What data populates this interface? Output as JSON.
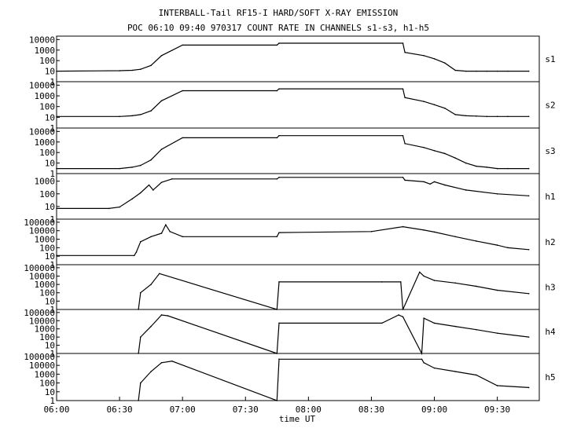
{
  "title_line1": "INTERBALL-Tail RF15-I HARD/SOFT X-RAY EMISSION",
  "title_line2": "POC 06:10 09:40 970317  COUNT RATE IN CHANNELS s1-s3, h1-h5",
  "xlabel": "time UT",
  "chart_data": [
    {
      "type": "line",
      "channel": "s1",
      "ytick_labels": [
        "10000",
        "1000",
        "100",
        "10",
        "1"
      ],
      "ylim": [
        1,
        15000
      ],
      "x": [
        "06:00",
        "06:30",
        "06:36",
        "06:40",
        "06:45",
        "06:50",
        "07:00",
        "07:45",
        "07:46",
        "08:45",
        "08:46",
        "08:55",
        "09:00",
        "09:05",
        "09:10",
        "09:15",
        "09:20",
        "09:25",
        "09:30",
        "09:35",
        "09:45"
      ],
      "values": [
        10,
        11,
        12,
        15,
        35,
        300,
        3000,
        3000,
        4500,
        4500,
        600,
        300,
        150,
        60,
        12,
        10,
        10,
        10,
        10,
        10,
        10
      ]
    },
    {
      "type": "line",
      "channel": "s2",
      "ytick_labels": [
        "10000",
        "1000",
        "100",
        "10",
        "1"
      ],
      "ylim": [
        1,
        15000
      ],
      "x": [
        "06:00",
        "06:30",
        "06:36",
        "06:40",
        "06:45",
        "06:50",
        "07:00",
        "07:45",
        "07:46",
        "08:45",
        "08:46",
        "08:55",
        "09:00",
        "09:05",
        "09:10",
        "09:15",
        "09:20",
        "09:25",
        "09:30",
        "09:35",
        "09:45"
      ],
      "values": [
        12,
        12,
        14,
        18,
        40,
        350,
        3000,
        3000,
        4500,
        4500,
        700,
        300,
        150,
        70,
        18,
        14,
        13,
        12,
        12,
        12,
        12
      ]
    },
    {
      "type": "line",
      "channel": "s3",
      "ytick_labels": [
        "10000",
        "1000",
        "100",
        "10",
        "1"
      ],
      "ylim": [
        1,
        15000
      ],
      "x": [
        "06:00",
        "06:30",
        "06:36",
        "06:40",
        "06:45",
        "06:50",
        "07:00",
        "07:45",
        "07:46",
        "08:45",
        "08:46",
        "08:55",
        "09:00",
        "09:05",
        "09:10",
        "09:15",
        "09:20",
        "09:25",
        "09:30",
        "09:35",
        "09:45"
      ],
      "values": [
        3,
        3,
        4,
        6,
        20,
        200,
        2500,
        2500,
        4000,
        4000,
        700,
        300,
        150,
        80,
        30,
        10,
        5,
        4,
        3,
        3,
        3
      ]
    },
    {
      "type": "line",
      "channel": "h1",
      "ytick_labels": [
        "1000",
        "100",
        "10",
        "1"
      ],
      "ylim": [
        1,
        3000
      ],
      "x": [
        "06:00",
        "06:25",
        "06:30",
        "06:36",
        "06:40",
        "06:44",
        "06:46",
        "06:50",
        "06:55",
        "07:45",
        "07:46",
        "08:45",
        "08:46",
        "08:55",
        "08:58",
        "09:00",
        "09:05",
        "09:15",
        "09:30",
        "09:45"
      ],
      "values": [
        7,
        7,
        9,
        40,
        120,
        500,
        200,
        800,
        1500,
        1500,
        2000,
        2000,
        1200,
        900,
        600,
        900,
        500,
        200,
        100,
        70
      ]
    },
    {
      "type": "line",
      "channel": "h2",
      "ytick_labels": [
        "100000",
        "10000",
        "1000",
        "100",
        "10",
        "1"
      ],
      "ylim": [
        1,
        150000
      ],
      "x": [
        "06:00",
        "06:37",
        "06:38",
        "06:40",
        "06:45",
        "06:50",
        "06:52",
        "06:54",
        "07:00",
        "07:45",
        "07:46",
        "08:30",
        "08:45",
        "08:55",
        "09:00",
        "09:10",
        "09:20",
        "09:30",
        "09:35",
        "09:45"
      ],
      "values": [
        12,
        12,
        30,
        500,
        2000,
        5000,
        50000,
        8000,
        2000,
        2000,
        6000,
        8000,
        30000,
        12000,
        7000,
        2000,
        600,
        200,
        100,
        60
      ]
    },
    {
      "type": "line",
      "channel": "h3",
      "ytick_labels": [
        "100000",
        "10000",
        "1000",
        "100",
        "10",
        "1"
      ],
      "ylim": [
        1,
        150000
      ],
      "x": [
        "06:39",
        "06:40",
        "06:45",
        "06:49",
        "07:45",
        "07:46",
        "08:35",
        "08:44",
        "08:45",
        "08:53",
        "08:55",
        "09:00",
        "09:10",
        "09:20",
        "09:30",
        "09:45"
      ],
      "values": [
        1,
        100,
        1000,
        20000,
        1,
        2000,
        2000,
        2000,
        1,
        30000,
        10000,
        3000,
        1500,
        600,
        200,
        80
      ]
    },
    {
      "type": "line",
      "channel": "h4",
      "ytick_labels": [
        "100000",
        "10000",
        "1000",
        "100",
        "10",
        "1"
      ],
      "ylim": [
        1,
        150000
      ],
      "x": [
        "06:39",
        "06:40",
        "06:45",
        "06:50",
        "06:53",
        "07:45",
        "07:46",
        "08:35",
        "08:43",
        "08:45",
        "08:54",
        "08:55",
        "09:00",
        "09:10",
        "09:20",
        "09:30",
        "09:45"
      ],
      "values": [
        1,
        100,
        2000,
        50000,
        40000,
        1,
        5000,
        5000,
        50000,
        30000,
        1,
        20000,
        5000,
        2000,
        800,
        300,
        100
      ]
    },
    {
      "type": "line",
      "channel": "h5",
      "ytick_labels": [
        "100000",
        "10000",
        "1000",
        "100",
        "10",
        "1"
      ],
      "ylim": [
        1,
        150000
      ],
      "x": [
        "06:39",
        "06:40",
        "06:45",
        "06:50",
        "06:55",
        "07:45",
        "07:46",
        "08:54",
        "08:55",
        "09:00",
        "09:10",
        "09:20",
        "09:30",
        "09:45"
      ],
      "values": [
        1,
        100,
        2000,
        20000,
        30000,
        1,
        50000,
        50000,
        20000,
        5000,
        2000,
        800,
        50,
        30
      ]
    }
  ],
  "x_ticks": [
    "06:00",
    "06:30",
    "07:00",
    "07:30",
    "08:00",
    "08:30",
    "09:00",
    "09:30"
  ]
}
